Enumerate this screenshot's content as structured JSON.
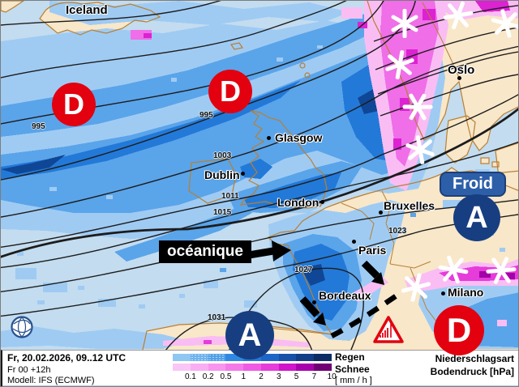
{
  "map": {
    "regions": {
      "iceland": "Iceland"
    },
    "cities": [
      {
        "name": "Oslo"
      },
      {
        "name": "Glasgow"
      },
      {
        "name": "Dublin"
      },
      {
        "name": "London"
      },
      {
        "name": "Bruxelles"
      },
      {
        "name": "Paris"
      },
      {
        "name": "Bordeaux"
      },
      {
        "name": "Milano"
      }
    ],
    "isobar_labels": [
      "995",
      "995",
      "1003",
      "1011",
      "1015",
      "1023",
      "1027",
      "1031"
    ],
    "pressure_markers": [
      {
        "letter": "D",
        "type": "low"
      },
      {
        "letter": "D",
        "type": "low"
      },
      {
        "letter": "A",
        "type": "high"
      },
      {
        "letter": "A",
        "type": "high"
      },
      {
        "letter": "D",
        "type": "low"
      }
    ],
    "annotations": {
      "cold_label": "Froid",
      "oceanic_label": "océanique"
    },
    "colors": {
      "low_pressure": "#e3000f",
      "high_pressure": "#173e80",
      "cold_box": "#2d5fa9",
      "ocean": "#c3dcef",
      "land": "#f8e7c9"
    }
  },
  "footer": {
    "left": {
      "datetime": "Fr, 20.02.2026, 09..12 UTC",
      "run": "Fr 00 +12h",
      "model": "Modell: IFS (ECMWF)"
    },
    "legend": {
      "rain_label": "Regen",
      "snow_label": "Schnee",
      "unit": "[ mm / h ]",
      "ticks": [
        "0.1",
        "0.2",
        "0.5",
        "1",
        "2",
        "3",
        "5",
        "7",
        "10"
      ],
      "rain_colors": [
        "#8ec7f2",
        "#6fb3ee",
        "#51a0e8",
        "#2f89e2",
        "#2478da",
        "#1d66c8",
        "#1751a8",
        "#123e88",
        "#0c2c64"
      ],
      "snow_colors": [
        "#f9c6f5",
        "#f9aef3",
        "#f795ef",
        "#f47ae9",
        "#ef5ce3",
        "#e53cda",
        "#cf16ca",
        "#a900ad",
        "#700074"
      ]
    },
    "right": {
      "line1": "Niederschlagsart",
      "line2": "Bodendruck [hPa]"
    }
  }
}
